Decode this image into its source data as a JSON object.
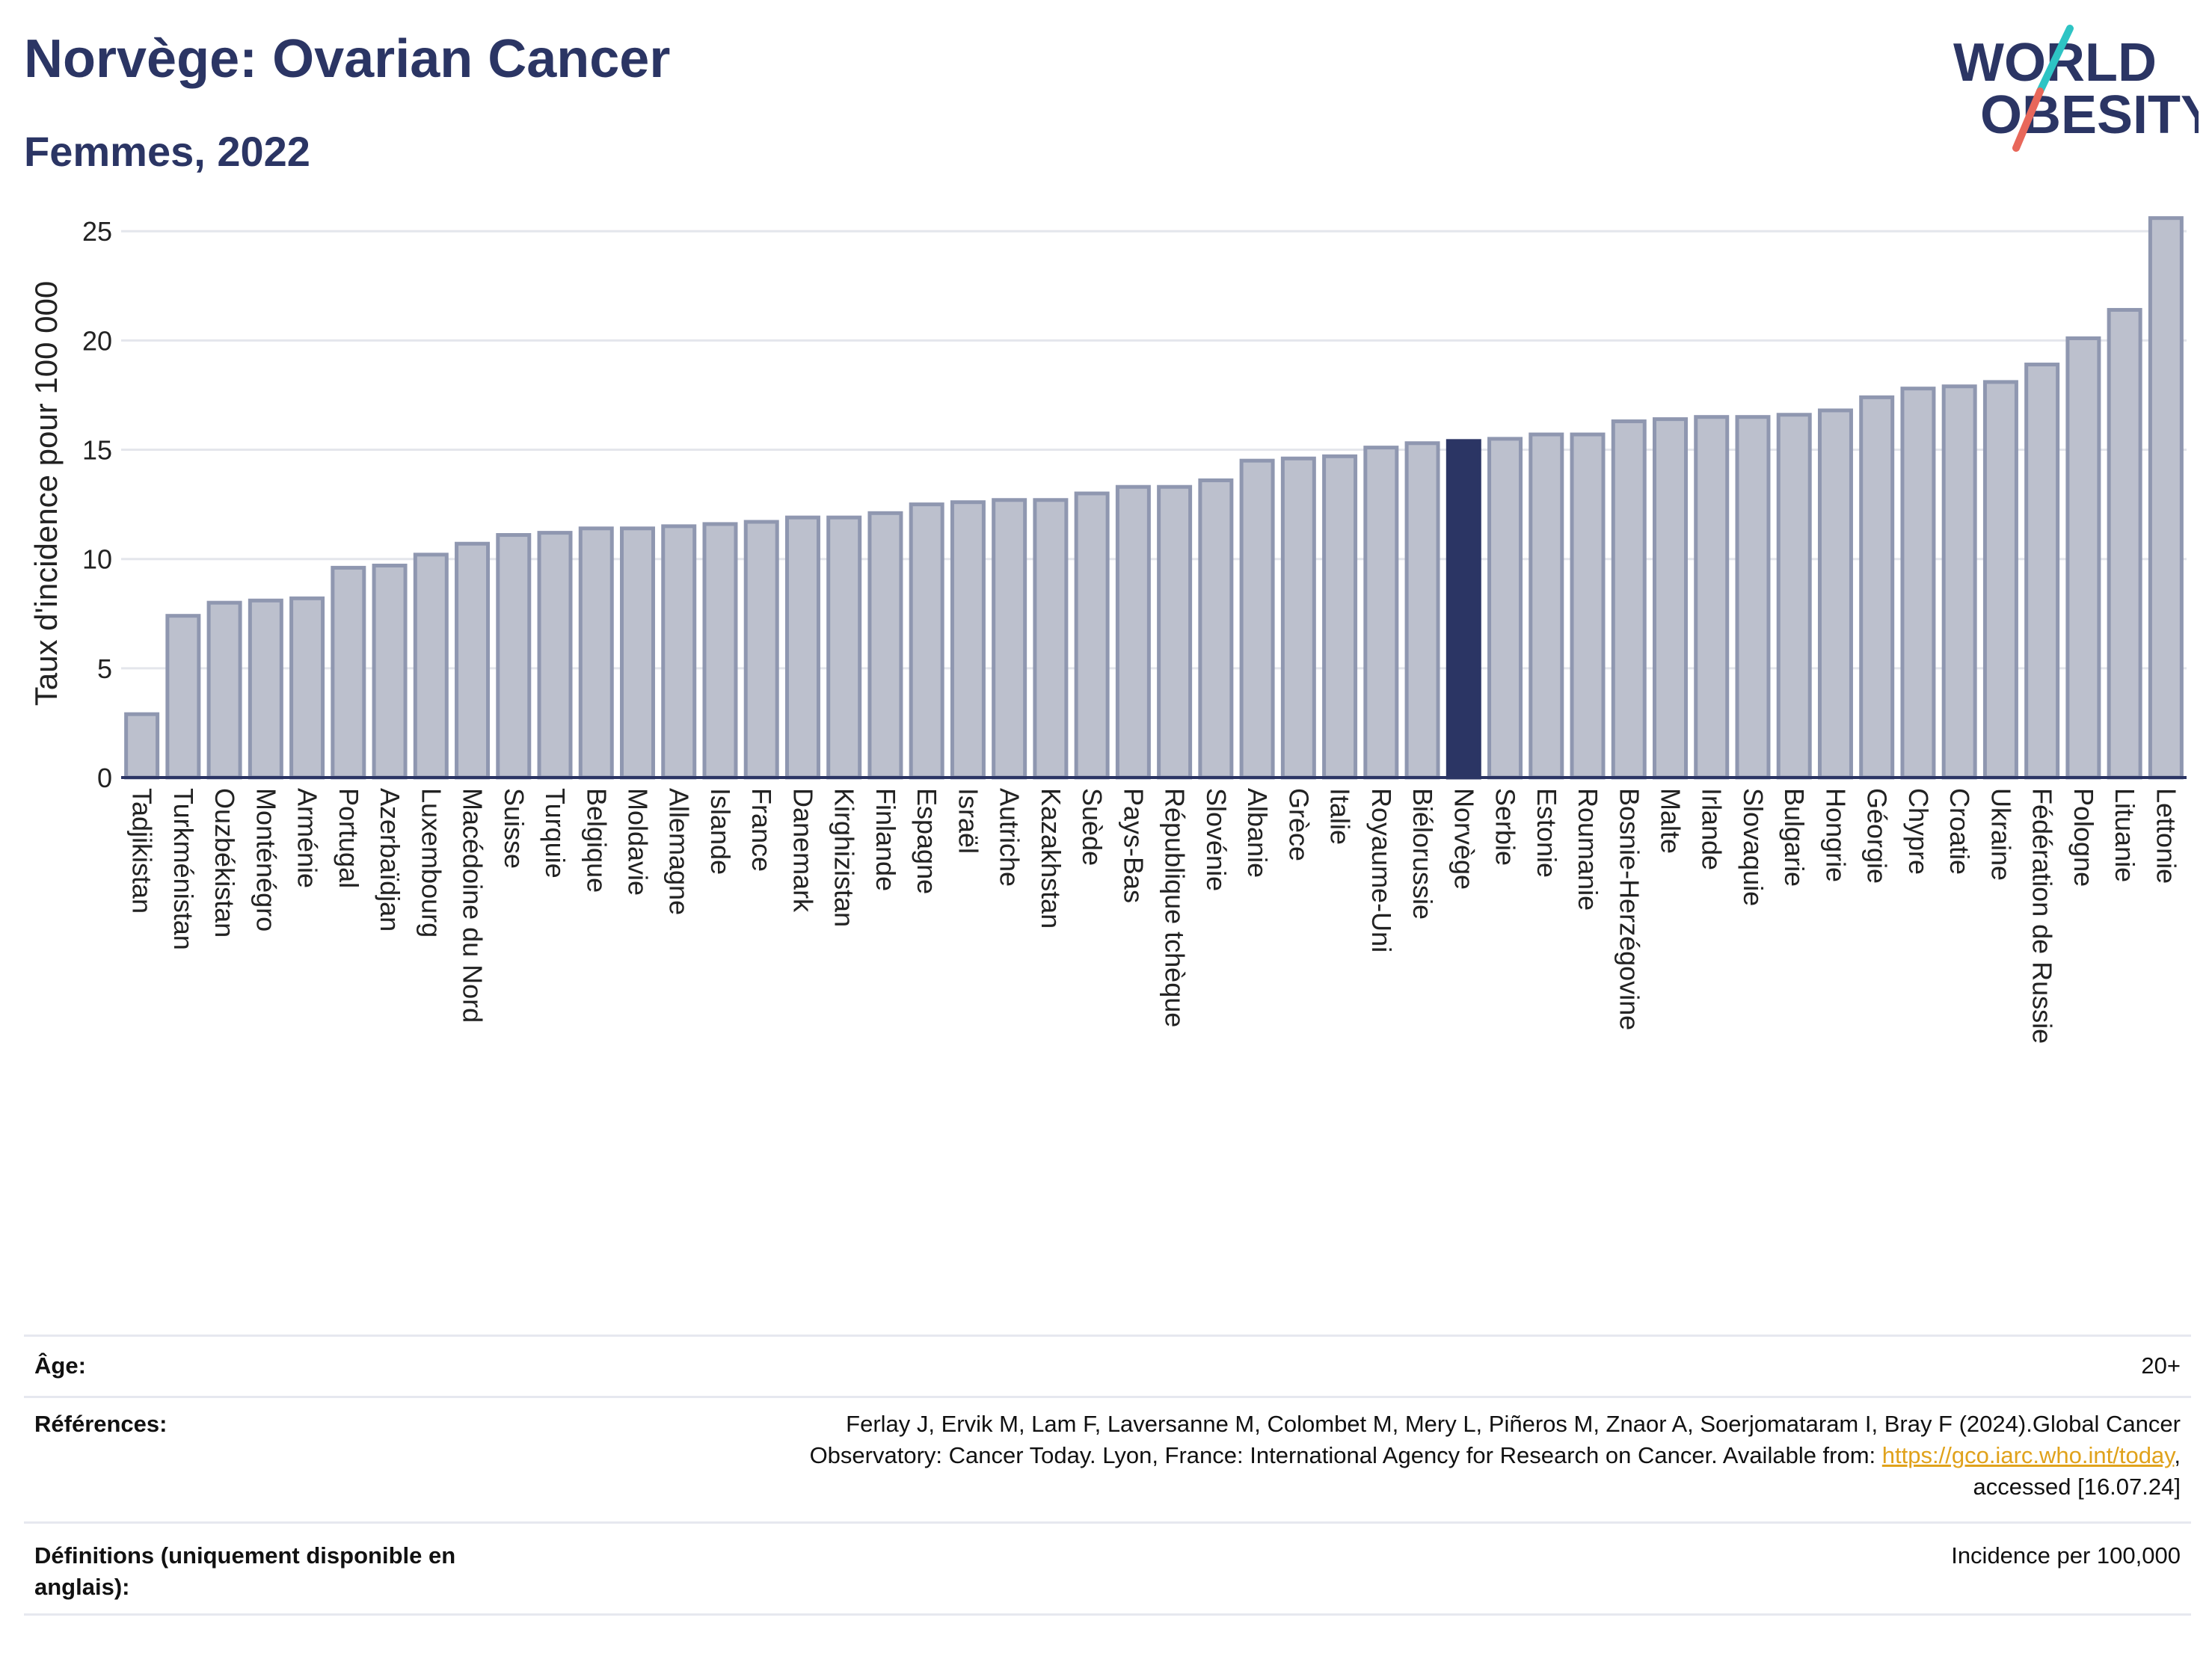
{
  "header": {
    "title": "Norvège: Ovarian Cancer",
    "subtitle": "Femmes, 2022",
    "logo_line1": "WORLD",
    "logo_line2": "OBESITY"
  },
  "colors": {
    "bar": "#bcc0cd",
    "bar_stroke": "#8f97b0",
    "highlight": "#2b3564",
    "text": "#2b3564",
    "link": "#e0a21b",
    "logo_teal": "#2ec4c4",
    "logo_coral": "#e8675a"
  },
  "chart_data": {
    "type": "bar",
    "title": "",
    "xlabel": "",
    "ylabel": "Taux d'incidence pour 100 000",
    "ylim": [
      0,
      26
    ],
    "yticks": [
      0,
      5,
      10,
      15,
      20,
      25
    ],
    "grid": true,
    "highlight": "Norvège",
    "categories": [
      "Tadjikistan",
      "Turkménistan",
      "Ouzbékistan",
      "Monténégro",
      "Arménie",
      "Portugal",
      "Azerbaïdjan",
      "Luxembourg",
      "Macédoine du Nord",
      "Suisse",
      "Turquie",
      "Belgique",
      "Moldavie",
      "Allemagne",
      "Islande",
      "France",
      "Danemark",
      "Kirghizistan",
      "Finlande",
      "Espagne",
      "Israël",
      "Autriche",
      "Kazakhstan",
      "Suède",
      "Pays-Bas",
      "République tchèque",
      "Slovénie",
      "Albanie",
      "Grèce",
      "Italie",
      "Royaume-Uni",
      "Biélorussie",
      "Norvège",
      "Serbie",
      "Estonie",
      "Roumanie",
      "Bosnie-Herzégovine",
      "Malte",
      "Irlande",
      "Slovaquie",
      "Bulgarie",
      "Hongrie",
      "Géorgie",
      "Chypre",
      "Croatie",
      "Ukraine",
      "Fédération de Russie",
      "Pologne",
      "Lituanie",
      "Lettonie"
    ],
    "values": [
      2.9,
      7.4,
      8.0,
      8.1,
      8.2,
      9.6,
      9.7,
      10.2,
      10.7,
      11.1,
      11.2,
      11.4,
      11.4,
      11.5,
      11.6,
      11.7,
      11.9,
      11.9,
      12.1,
      12.5,
      12.6,
      12.7,
      12.7,
      13.0,
      13.3,
      13.3,
      13.6,
      14.5,
      14.6,
      14.7,
      15.1,
      15.3,
      15.4,
      15.5,
      15.7,
      15.7,
      16.3,
      16.4,
      16.5,
      16.5,
      16.6,
      16.8,
      17.4,
      17.8,
      17.9,
      18.1,
      18.9,
      20.1,
      21.4,
      25.6
    ]
  },
  "footer": {
    "age_label": "Âge:",
    "age_value": "20+",
    "ref_label": "Références:",
    "ref_line1": "Ferlay J, Ervik M, Lam F, Laversanne M, Colombet M, Mery L, Piñeros M, Znaor A, Soerjomataram I, Bray F (2024).Global Cancer",
    "ref_line2_pre": "Observatory: Cancer Today. Lyon, France: International Agency for Research on Cancer. Available from: ",
    "ref_link": "https://gco.iarc.who.int/today",
    "ref_line2_post": ",",
    "ref_line3": "accessed [16.07.24]",
    "def_label_line1": "Définitions (uniquement disponible en",
    "def_label_line2": "anglais):",
    "def_value": "Incidence per 100,000"
  }
}
